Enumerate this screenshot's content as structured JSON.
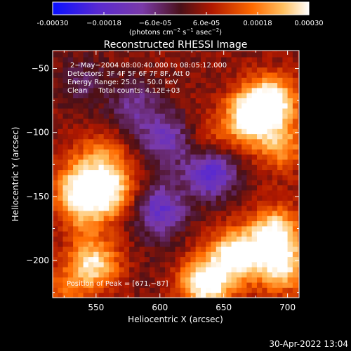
{
  "chart_data": {
    "type": "heatmap",
    "title": "Reconstructed RHESSI Image",
    "xlabel": "Heliocentric X (arcsec)",
    "ylabel": "Heliocentric Y (arcsec)",
    "xlim": [
      516,
      709
    ],
    "ylim": [
      -229,
      -36
    ],
    "x_ticks": [
      550,
      600,
      650,
      700
    ],
    "x_tick_labels": [
      "550",
      "600",
      "650",
      "700"
    ],
    "y_ticks": [
      -50,
      -100,
      -150,
      -200
    ],
    "y_tick_labels": [
      "−50",
      "−100",
      "−150",
      "−200"
    ],
    "colorbar": {
      "range": [
        -0.0003,
        0.0003
      ],
      "tick_values": [
        -0.0003,
        -0.00018,
        -6e-05,
        6e-05,
        0.00018,
        0.0003
      ],
      "tick_labels": [
        "-0.00030",
        "−0.00018",
        "−6.0e-05",
        "6.0e-05",
        "0.00018",
        "0.00030"
      ],
      "unit_prefix": "(photons cm",
      "unit_mid": " s",
      "unit_end": " asec",
      "unit_close": ")",
      "unit_sup1": "−2",
      "unit_sup2": "−1",
      "unit_sup3": "−2"
    },
    "annotations": [
      "2−May−2004 08:00:40.000 to 08:05:12.000",
      "Detectors: 3F 4F 5F 6F 7F 8F, Att 0",
      "Energy Range: 25.0 − 50.0 keV",
      "Clean     Total counts: 4.12E+03"
    ],
    "peak_label": "Position of Peak = [671,−87]",
    "peak": [
      671,
      -87
    ],
    "bright_regions": [
      {
        "x": 548,
        "y": -202,
        "v": 0.00024
      },
      {
        "x": 540,
        "y": -160,
        "v": 0.00016
      },
      {
        "x": 537,
        "y": -140,
        "v": 0.0002
      },
      {
        "x": 562,
        "y": -145,
        "v": 0.00022
      },
      {
        "x": 555,
        "y": -118,
        "v": 0.00012
      },
      {
        "x": 640,
        "y": -110,
        "v": 0.0001
      },
      {
        "x": 688,
        "y": -75,
        "v": 0.00026
      },
      {
        "x": 671,
        "y": -87,
        "v": 0.0003
      },
      {
        "x": 695,
        "y": -110,
        "v": 0.00016
      },
      {
        "x": 660,
        "y": -195,
        "v": 0.00028
      },
      {
        "x": 690,
        "y": -178,
        "v": 0.00026
      },
      {
        "x": 695,
        "y": -205,
        "v": 0.00024
      },
      {
        "x": 640,
        "y": -220,
        "v": 0.00018
      },
      {
        "x": 525,
        "y": -225,
        "v": 0.0001
      },
      {
        "x": 612,
        "y": -200,
        "v": 0.00012
      },
      {
        "x": 630,
        "y": -215,
        "v": 0.00014
      }
    ],
    "dark_regions": [
      {
        "x": 600,
        "y": -160,
        "v": -0.0002
      },
      {
        "x": 640,
        "y": -130,
        "v": -0.00026
      },
      {
        "x": 605,
        "y": -105,
        "v": -0.00016
      },
      {
        "x": 580,
        "y": -80,
        "v": -0.00012
      },
      {
        "x": 610,
        "y": -200,
        "v": -0.00014
      },
      {
        "x": 540,
        "y": -60,
        "v": -8e-05
      }
    ]
  },
  "footer": {
    "timestamp": "30-Apr-2022 13:04"
  }
}
